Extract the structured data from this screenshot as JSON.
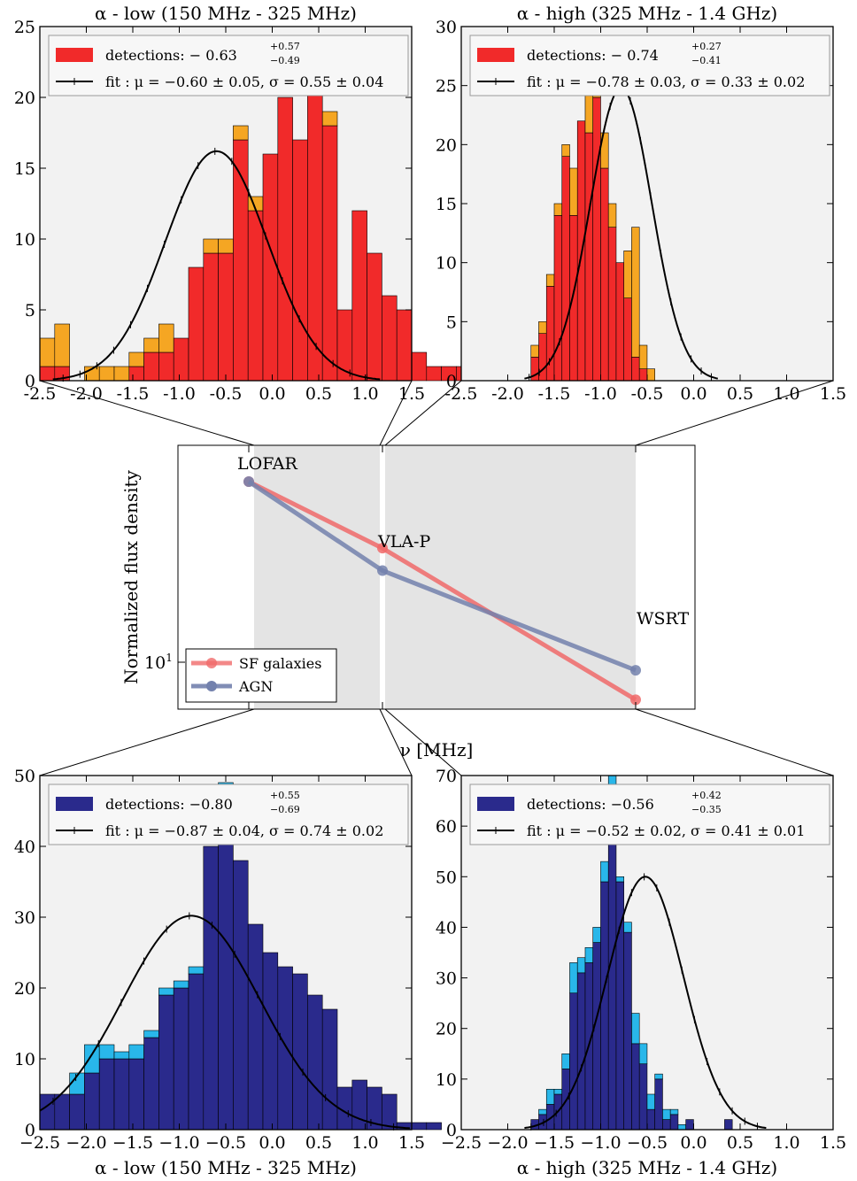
{
  "panels": {
    "sf_low": {
      "title": "α - low (150 MHz - 325 MHz)",
      "legend_detections": "detections:  − 0.63",
      "legend_detections_sup": "+0.57",
      "legend_detections_sub": "−0.49",
      "legend_fit": "fit :  μ = −0.60 ± 0.05,  σ = 0.55 ± 0.04"
    },
    "sf_high": {
      "title": "α - high (325 MHz - 1.4 GHz)",
      "legend_detections": "detections:  − 0.74",
      "legend_detections_sup": "+0.27",
      "legend_detections_sub": "−0.41",
      "legend_fit": "fit :  μ = −0.78 ± 0.03,  σ = 0.33 ± 0.02"
    },
    "agn_low": {
      "xlabel": "α - low (150 MHz - 325 MHz)",
      "legend_detections": "detections:  −0.80",
      "legend_detections_sup": "+0.55",
      "legend_detections_sub": "−0.69",
      "legend_fit": "fit :  μ = −0.87 ± 0.04,  σ = 0.74 ± 0.02"
    },
    "agn_high": {
      "xlabel": "α - high (325 MHz - 1.4 GHz)",
      "legend_detections": "detections:  −0.56",
      "legend_detections_sup": "+0.42",
      "legend_detections_sub": "−0.35",
      "legend_fit": "fit :  μ = −0.52 ± 0.02,  σ = 0.41 ± 0.01"
    },
    "sed": {
      "ylabel": "Normalized flux density",
      "xlabel": "ν [MHz]",
      "ytick": "10",
      "ytick_exp": "1",
      "sites": [
        "LOFAR",
        "VLA-P",
        "WSRT"
      ],
      "legend": [
        "SF galaxies",
        "AGN"
      ]
    }
  },
  "colors": {
    "sf_detections": "#f12a2a",
    "sf_extra": "#f5a623",
    "agn_detections": "#2a2a8c",
    "agn_extra": "#29b7ea",
    "sed_sf": "#f06a6a",
    "sed_agn": "#7381ad",
    "panel_bg": "#f2f2f2"
  },
  "chart_data": [
    {
      "type": "bar",
      "subtype": "stacked-histogram",
      "panel": "sf_low",
      "title": "α - low (150 MHz - 325 MHz)",
      "xlim": [
        -2.5,
        1.5
      ],
      "ylim": [
        0,
        25
      ],
      "xticks": [
        -2.5,
        -2.0,
        -1.5,
        -1.0,
        -0.5,
        0.0,
        0.5,
        1.0,
        1.5
      ],
      "yticks": [
        0,
        5,
        10,
        15,
        20,
        25
      ],
      "bin_width": 0.16,
      "bin_start": -2.5,
      "series": [
        {
          "name": "detections",
          "values": [
            1,
            1,
            0,
            0,
            0,
            0,
            1,
            2,
            2,
            3,
            8,
            9,
            9,
            17,
            12,
            16,
            20,
            17,
            21,
            18,
            5,
            12,
            9,
            6,
            5,
            2,
            1,
            1,
            1,
            0,
            1,
            0,
            0,
            0,
            0
          ]
        },
        {
          "name": "extra",
          "values": [
            2,
            3,
            0,
            1,
            1,
            1,
            1,
            1,
            2,
            0,
            0,
            1,
            1,
            1,
            1,
            0,
            0,
            0,
            1,
            1,
            0,
            0,
            0,
            0,
            0,
            0,
            0,
            0,
            0,
            0,
            0,
            0,
            0,
            0,
            0
          ]
        }
      ],
      "fit": {
        "mu": -0.6,
        "sigma": 0.55,
        "peak": 16.2
      }
    },
    {
      "type": "bar",
      "subtype": "stacked-histogram",
      "panel": "sf_high",
      "title": "α - high (325 MHz - 1.4 GHz)",
      "xlim": [
        -2.5,
        1.5
      ],
      "ylim": [
        0,
        30
      ],
      "xticks": [
        -2.5,
        -2.0,
        -1.5,
        -1.0,
        -0.5,
        0.0,
        0.5,
        1.0,
        1.5
      ],
      "yticks": [
        0,
        5,
        10,
        15,
        20,
        25,
        30
      ],
      "bin_width": 0.0833,
      "bin_start": -1.75,
      "series": [
        {
          "name": "detections",
          "values": [
            2,
            4,
            8,
            14,
            19,
            14,
            22,
            21,
            24,
            18,
            13,
            10,
            7,
            2,
            1,
            0
          ]
        },
        {
          "name": "extra",
          "values": [
            1,
            1,
            1,
            1,
            1,
            4,
            0,
            6,
            1,
            3,
            2,
            0,
            4,
            11,
            2,
            1
          ]
        }
      ],
      "fit": {
        "mu": -0.78,
        "sigma": 0.33,
        "peak": 24.8
      }
    },
    {
      "type": "bar",
      "subtype": "stacked-histogram",
      "panel": "agn_low",
      "xlabel": "α - low (150 MHz - 325 MHz)",
      "xlim": [
        -2.5,
        1.5
      ],
      "ylim": [
        0,
        50
      ],
      "xticks": [
        -2.5,
        -2.0,
        -1.5,
        -1.0,
        -0.5,
        0.0,
        0.5,
        1.0,
        1.5
      ],
      "yticks": [
        0,
        10,
        20,
        30,
        40,
        50
      ],
      "bin_width": 0.16,
      "bin_start": -2.5,
      "series": [
        {
          "name": "detections",
          "values": [
            5,
            5,
            5,
            8,
            10,
            10,
            10,
            13,
            19,
            20,
            22,
            40,
            48,
            38,
            29,
            25,
            23,
            22,
            19,
            17,
            6,
            7,
            6,
            5,
            1,
            1,
            1,
            0
          ]
        },
        {
          "name": "extra",
          "values": [
            0,
            0,
            3,
            4,
            2,
            1,
            2,
            1,
            1,
            1,
            1,
            0,
            1,
            0,
            0,
            0,
            0,
            0,
            0,
            0,
            0,
            0,
            0,
            0,
            0,
            0,
            0,
            0
          ]
        }
      ],
      "fit": {
        "mu": -0.87,
        "sigma": 0.74,
        "peak": 30.2
      }
    },
    {
      "type": "bar",
      "subtype": "stacked-histogram",
      "panel": "agn_high",
      "xlabel": "α - high (325 MHz - 1.4 GHz)",
      "xlim": [
        -2.5,
        1.5
      ],
      "ylim": [
        0,
        70
      ],
      "xticks": [
        -2.5,
        -2.0,
        -1.5,
        -1.0,
        -0.5,
        0.0,
        0.5,
        1.0,
        1.5
      ],
      "yticks": [
        0,
        10,
        20,
        30,
        40,
        50,
        60,
        70
      ],
      "bin_width": 0.0833,
      "bin_start": -1.75,
      "series": [
        {
          "name": "detections",
          "values": [
            2,
            3,
            5,
            7,
            12,
            27,
            31,
            33,
            37,
            49,
            61,
            49,
            39,
            17,
            13,
            4,
            10,
            2,
            3,
            0,
            2,
            0,
            0,
            0,
            0,
            2
          ]
        },
        {
          "name": "extra",
          "values": [
            0,
            1,
            3,
            1,
            3,
            6,
            3,
            3,
            3,
            4,
            9,
            1,
            2,
            6,
            4,
            3,
            1,
            2,
            1,
            1,
            0,
            0,
            0,
            0,
            0,
            0
          ]
        }
      ],
      "fit": {
        "mu": -0.52,
        "sigma": 0.41,
        "peak": 50
      }
    },
    {
      "type": "line",
      "panel": "sed",
      "x": [
        "150",
        "325",
        "1400"
      ],
      "xlabel": "ν [MHz]",
      "ylabel": "Normalized flux density",
      "yscale": "log",
      "series": [
        {
          "name": "SF galaxies",
          "values": [
            40,
            24.0,
            7.5
          ]
        },
        {
          "name": "AGN",
          "values": [
            40,
            20.2,
            9.4
          ]
        }
      ],
      "legend_position": "lower-left"
    }
  ]
}
